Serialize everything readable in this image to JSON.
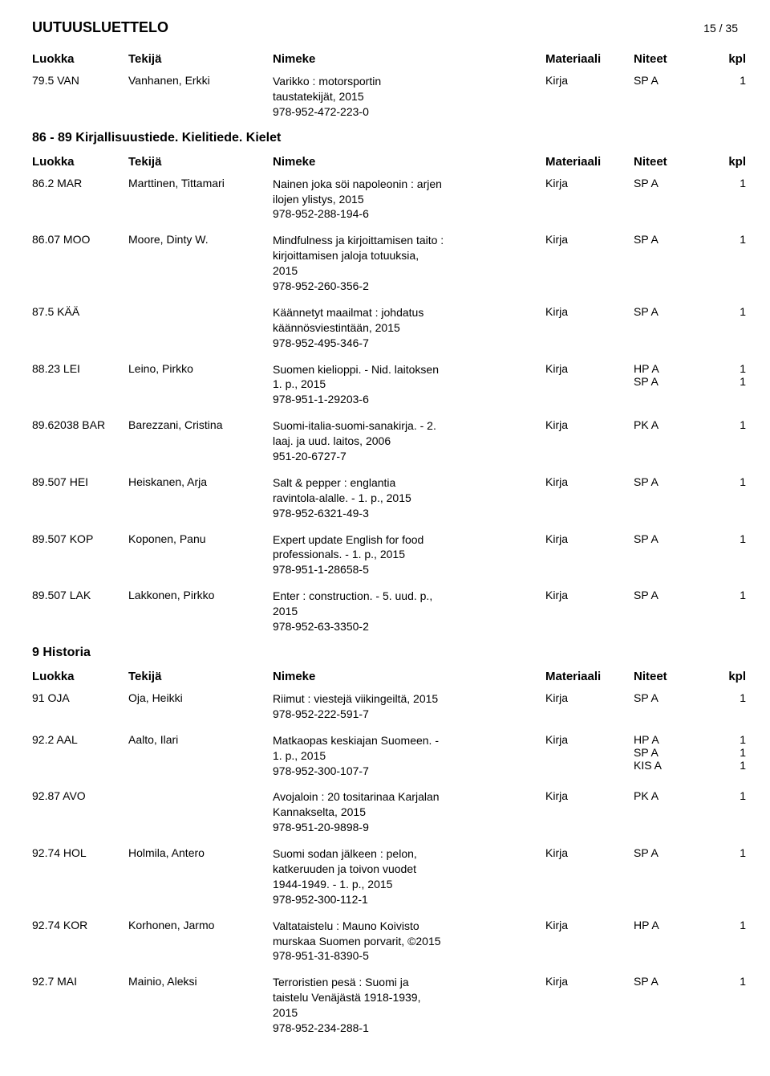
{
  "header": {
    "title": "UUTUUSLUETTELO",
    "page": "15 / 35"
  },
  "columns": {
    "luokka": "Luokka",
    "tekija": "Tekijä",
    "nimeke": "Nimeke",
    "materiaali": "Materiaali",
    "niteet": "Niteet",
    "kpl": "kpl"
  },
  "sections": [
    {
      "preRows": [
        {
          "class": "79.5 VAN",
          "author": "Vanhanen, Erkki",
          "titleLines": [
            "Varikko : motorsportin",
            "taustatekijät, 2015",
            "978-952-472-223-0"
          ],
          "material": "Kirja",
          "holdings": [
            {
              "loc": "SP A",
              "count": "1"
            }
          ]
        }
      ],
      "heading": "86 - 89 Kirjallisuustiede. Kielitiede. Kielet",
      "rows": [
        {
          "class": "86.2 MAR",
          "author": "Marttinen, Tittamari",
          "titleLines": [
            "Nainen joka söi napoleonin : arjen",
            "ilojen ylistys, 2015",
            "978-952-288-194-6"
          ],
          "material": "Kirja",
          "holdings": [
            {
              "loc": "SP A",
              "count": "1"
            }
          ]
        },
        {
          "class": "86.07 MOO",
          "author": "Moore, Dinty W.",
          "titleLines": [
            "Mindfulness ja kirjoittamisen taito :",
            "kirjoittamisen jaloja totuuksia,",
            "2015",
            "978-952-260-356-2"
          ],
          "material": "Kirja",
          "holdings": [
            {
              "loc": "SP A",
              "count": "1"
            }
          ]
        },
        {
          "class": "87.5 KÄÄ",
          "author": "",
          "titleLines": [
            "Käännetyt maailmat : johdatus",
            "käännösviestintään, 2015",
            "978-952-495-346-7"
          ],
          "material": "Kirja",
          "holdings": [
            {
              "loc": "SP A",
              "count": "1"
            }
          ]
        },
        {
          "class": "88.23 LEI",
          "author": "Leino, Pirkko",
          "titleLines": [
            "Suomen kielioppi. - Nid. laitoksen",
            "1. p., 2015",
            "978-951-1-29203-6"
          ],
          "material": "Kirja",
          "holdings": [
            {
              "loc": "HP A",
              "count": "1"
            },
            {
              "loc": "SP A",
              "count": "1"
            }
          ]
        },
        {
          "class": "89.62038 BAR",
          "author": "Barezzani, Cristina",
          "titleLines": [
            "Suomi-italia-suomi-sanakirja. - 2.",
            "laaj. ja uud. laitos, 2006",
            "951-20-6727-7"
          ],
          "material": "Kirja",
          "holdings": [
            {
              "loc": "PK A",
              "count": "1"
            }
          ]
        },
        {
          "class": "89.507 HEI",
          "author": "Heiskanen, Arja",
          "titleLines": [
            "Salt & pepper : englantia",
            "ravintola-alalle. - 1. p., 2015",
            "978-952-6321-49-3"
          ],
          "material": "Kirja",
          "holdings": [
            {
              "loc": "SP A",
              "count": "1"
            }
          ]
        },
        {
          "class": "89.507 KOP",
          "author": "Koponen, Panu",
          "titleLines": [
            "Expert update English for food",
            "professionals. - 1. p., 2015",
            "978-951-1-28658-5"
          ],
          "material": "Kirja",
          "holdings": [
            {
              "loc": "SP A",
              "count": "1"
            }
          ]
        },
        {
          "class": "89.507 LAK",
          "author": "Lakkonen, Pirkko",
          "titleLines": [
            "Enter : construction. - 5. uud. p.,",
            "2015",
            "978-952-63-3350-2"
          ],
          "material": "Kirja",
          "holdings": [
            {
              "loc": "SP A",
              "count": "1"
            }
          ]
        }
      ]
    },
    {
      "heading": "9 Historia",
      "rows": [
        {
          "class": "91 OJA",
          "author": "Oja, Heikki",
          "titleLines": [
            "Riimut : viestejä viikingeiltä, 2015",
            "978-952-222-591-7"
          ],
          "material": "Kirja",
          "holdings": [
            {
              "loc": "SP A",
              "count": "1"
            }
          ]
        },
        {
          "class": "92.2 AAL",
          "author": "Aalto, Ilari",
          "titleLines": [
            "Matkaopas keskiajan Suomeen.  -",
            "1. p., 2015",
            "978-952-300-107-7"
          ],
          "material": "Kirja",
          "holdings": [
            {
              "loc": "HP A",
              "count": "1"
            },
            {
              "loc": "SP A",
              "count": "1"
            },
            {
              "loc": "KIS A",
              "count": "1"
            }
          ]
        },
        {
          "class": "92.87 AVO",
          "author": "",
          "titleLines": [
            "Avojaloin : 20 tositarinaa Karjalan",
            "Kannakselta, 2015",
            "978-951-20-9898-9"
          ],
          "material": "Kirja",
          "holdings": [
            {
              "loc": "PK A",
              "count": "1"
            }
          ]
        },
        {
          "class": "92.74 HOL",
          "author": "Holmila, Antero",
          "titleLines": [
            "Suomi sodan jälkeen : pelon,",
            "katkeruuden ja toivon vuodet",
            "1944-1949. - 1. p., 2015",
            "978-952-300-112-1"
          ],
          "material": "Kirja",
          "holdings": [
            {
              "loc": "SP A",
              "count": "1"
            }
          ]
        },
        {
          "class": "92.74 KOR",
          "author": "Korhonen, Jarmo",
          "titleLines": [
            "Valtataistelu : Mauno Koivisto",
            "murskaa Suomen porvarit, ©2015",
            "978-951-31-8390-5"
          ],
          "material": "Kirja",
          "holdings": [
            {
              "loc": "HP A",
              "count": "1"
            }
          ]
        },
        {
          "class": "92.7 MAI",
          "author": "Mainio, Aleksi",
          "titleLines": [
            "Terroristien pesä : Suomi ja",
            "taistelu Venäjästä 1918-1939,",
            "2015",
            "978-952-234-288-1"
          ],
          "material": "Kirja",
          "holdings": [
            {
              "loc": "SP A",
              "count": "1"
            }
          ]
        }
      ]
    }
  ]
}
